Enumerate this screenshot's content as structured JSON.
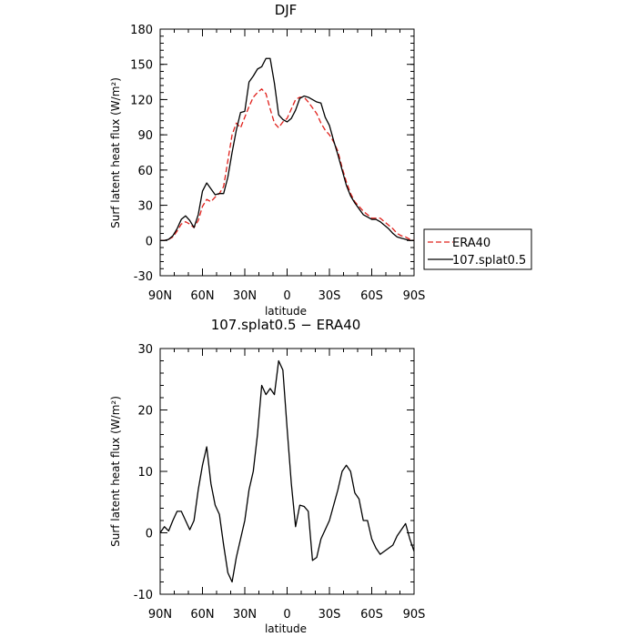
{
  "chart_data": [
    {
      "type": "line",
      "title": "DJF",
      "xlabel": "latitude",
      "ylabel": "Surf latent heat flux (W/m²)",
      "x_ticks": [
        "90N",
        "60N",
        "30N",
        "0",
        "30S",
        "60S",
        "90S"
      ],
      "x_tick_values": [
        90,
        60,
        30,
        0,
        -30,
        -60,
        -90
      ],
      "xlim": [
        90,
        -90
      ],
      "ylim": [
        -30,
        180
      ],
      "y_ticks": [
        -30,
        0,
        30,
        60,
        90,
        120,
        150,
        180
      ],
      "legend": {
        "placement": "right, outside plot"
      },
      "series": [
        {
          "name": "ERA40",
          "color": "#e0201b",
          "dash": "dashed",
          "x": [
            90,
            87,
            84,
            81,
            78,
            75,
            72,
            69,
            66,
            63,
            60,
            57,
            54,
            51,
            48,
            45,
            42,
            39,
            36,
            33,
            30,
            27,
            24,
            21,
            18,
            15,
            12,
            9,
            6,
            3,
            0,
            -3,
            -6,
            -9,
            -12,
            -15,
            -18,
            -21,
            -24,
            -27,
            -30,
            -33,
            -36,
            -39,
            -42,
            -45,
            -48,
            -51,
            -54,
            -57,
            -60,
            -63,
            -66,
            -69,
            -72,
            -75,
            -78,
            -81,
            -84,
            -87,
            -90
          ],
          "y": [
            0,
            0,
            1,
            3,
            8,
            14,
            16,
            14,
            11,
            17,
            29,
            35,
            33,
            37,
            40,
            46,
            68,
            90,
            100,
            96,
            105,
            114,
            122,
            126,
            129,
            125,
            112,
            100,
            96,
            101,
            104,
            112,
            120,
            122,
            122,
            118,
            113,
            108,
            100,
            94,
            90,
            84,
            76,
            62,
            50,
            40,
            33,
            29,
            25,
            22,
            19,
            19,
            19,
            16,
            13,
            10,
            6,
            4,
            3,
            1,
            0
          ]
        },
        {
          "name": "107.splat0.5",
          "color": "#000000",
          "dash": "solid",
          "x": [
            90,
            87,
            84,
            81,
            78,
            75,
            72,
            69,
            66,
            63,
            60,
            57,
            54,
            51,
            48,
            45,
            42,
            39,
            36,
            33,
            30,
            27,
            24,
            21,
            18,
            15,
            12,
            9,
            6,
            3,
            0,
            -3,
            -6,
            -9,
            -12,
            -15,
            -18,
            -21,
            -24,
            -27,
            -30,
            -33,
            -36,
            -39,
            -42,
            -45,
            -48,
            -51,
            -54,
            -57,
            -60,
            -63,
            -66,
            -69,
            -72,
            -75,
            -78,
            -81,
            -84,
            -87,
            -90
          ],
          "y": [
            0,
            0,
            1,
            4,
            10,
            18,
            21,
            17,
            11,
            22,
            42,
            49,
            44,
            39,
            40,
            40,
            54,
            75,
            94,
            109,
            110,
            135,
            140,
            146,
            148,
            155,
            155,
            134,
            107,
            103,
            101,
            104,
            111,
            121,
            123,
            122,
            120,
            118,
            117,
            105,
            98,
            85,
            73,
            60,
            47,
            38,
            32,
            27,
            22,
            20,
            18,
            18,
            16,
            13,
            10,
            6,
            3,
            2,
            1,
            0,
            0
          ]
        }
      ]
    },
    {
      "type": "line",
      "title": "107.splat0.5 − ERA40",
      "xlabel": "latitude",
      "ylabel": "Surf latent heat flux (W/m²)",
      "x_ticks": [
        "90N",
        "60N",
        "30N",
        "0",
        "30S",
        "60S",
        "90S"
      ],
      "x_tick_values": [
        90,
        60,
        30,
        0,
        -30,
        -60,
        -90
      ],
      "xlim": [
        90,
        -90
      ],
      "ylim": [
        -10,
        30
      ],
      "y_ticks": [
        -10,
        0,
        10,
        20,
        30
      ],
      "series": [
        {
          "color": "#000000",
          "dash": "solid",
          "x": [
            90,
            87,
            84,
            81,
            78,
            75,
            72,
            69,
            66,
            63,
            60,
            57,
            54,
            51,
            48,
            45,
            42,
            39,
            36,
            33,
            30,
            27,
            24,
            21,
            18,
            15,
            12,
            9,
            6,
            3,
            0,
            -3,
            -6,
            -9,
            -12,
            -15,
            -18,
            -21,
            -24,
            -27,
            -30,
            -33,
            -36,
            -39,
            -42,
            -45,
            -48,
            -51,
            -54,
            -57,
            -60,
            -63,
            -66,
            -69,
            -72,
            -75,
            -78,
            -81,
            -84,
            -87,
            -90
          ],
          "y": [
            0,
            1,
            0.3,
            2,
            3.5,
            3.5,
            2,
            0.5,
            2,
            7,
            11,
            14,
            8,
            4.5,
            3,
            -2,
            -6.5,
            -8,
            -4,
            -1,
            2,
            7,
            10,
            16,
            24,
            22.5,
            23.5,
            22.5,
            28,
            26.5,
            17,
            8,
            1,
            4.5,
            4.3,
            3.5,
            -4.5,
            -4,
            -1,
            0.5,
            2,
            4.5,
            7,
            10,
            11,
            10,
            6.5,
            5.5,
            2,
            2,
            -1,
            -2.5,
            -3.5,
            -3,
            -2.5,
            -2,
            -0.5,
            0.5,
            1.5,
            -1,
            -3
          ]
        }
      ]
    }
  ]
}
